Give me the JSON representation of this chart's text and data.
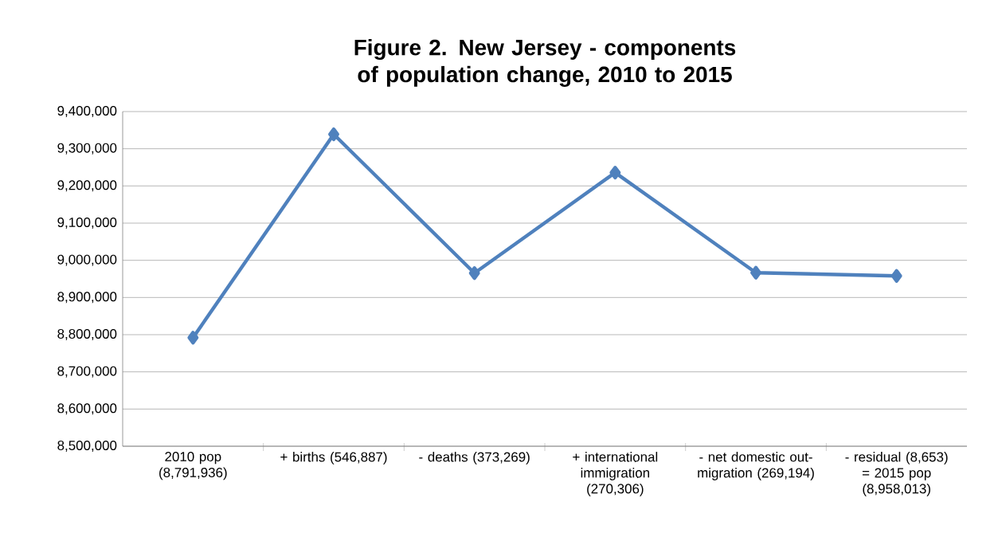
{
  "chart_data": {
    "type": "line",
    "title": "Figure 2. New Jersey - components of population change, 2010 to 2015",
    "categories": [
      "2010 pop (8,791,936)",
      "+ births (546,887)",
      "- deaths (373,269)",
      "+ international immigration (270,306)",
      "- net domestic out-migration (269,194)",
      "- residual (8,653) = 2015 pop (8,958,013)"
    ],
    "series": [
      {
        "color": "#4f81bd",
        "values": [
          8791936,
          9338823,
          8965554,
          9235860,
          8966666,
          8958013
        ]
      }
    ],
    "ylim": [
      8500000,
      9400000
    ],
    "yticks": [
      {
        "value": 8500000,
        "label": "8,500,000"
      },
      {
        "value": 8600000,
        "label": "8,600,000"
      },
      {
        "value": 8700000,
        "label": "8,700,000"
      },
      {
        "value": 8800000,
        "label": "8,800,000"
      },
      {
        "value": 8900000,
        "label": "8,900,000"
      },
      {
        "value": 9000000,
        "label": "9,000,000"
      },
      {
        "value": 9100000,
        "label": "9,100,000"
      },
      {
        "value": 9200000,
        "label": "9,200,000"
      },
      {
        "value": 9300000,
        "label": "9,300,000"
      },
      {
        "value": 9400000,
        "label": "9,400,000"
      }
    ],
    "grid": "y",
    "marker": "diamond",
    "line_style": "solid"
  }
}
